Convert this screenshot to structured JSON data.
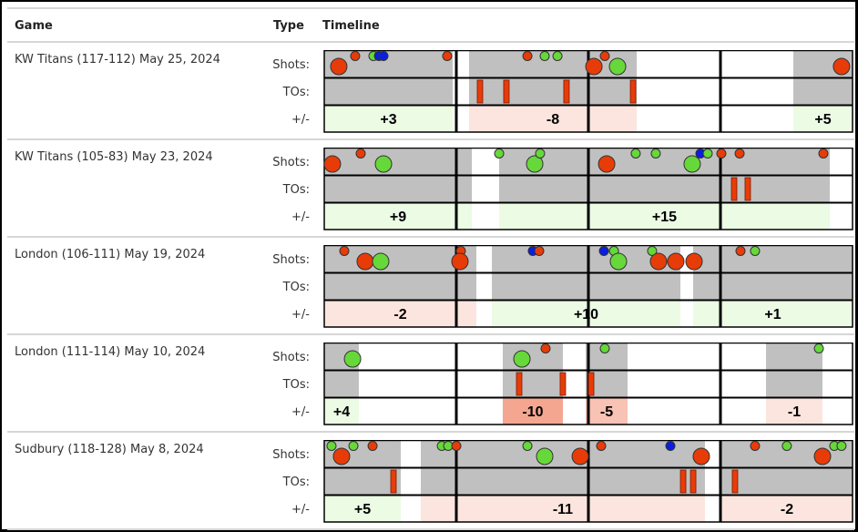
{
  "header": {
    "game": "Game",
    "type": "Type",
    "timeline": "Timeline"
  },
  "row_labels": {
    "shots": "Shots:",
    "tos": "TOs:",
    "plusminus": "+/-"
  },
  "colors": {
    "stint": "#c0c0c0",
    "red": "#e83c08",
    "green": "#66d83a",
    "blue": "#0a1ee0",
    "pos_light": "#ebfbe4",
    "neg_light": "#fce5de",
    "neg_strong": "#f4a690",
    "neg_mid": "#f8c2b4",
    "to_bar": "#e83c08"
  },
  "timeline_minutes": 48,
  "quarter_marks": [
    12,
    24,
    36
  ],
  "chart_data": [
    {
      "type": "timeline",
      "game": "KW Titans (117-112) May 25, 2024",
      "stints": [
        [
          0,
          11.67
        ],
        [
          13.16,
          28.39
        ],
        [
          42.62,
          48
        ]
      ],
      "shots": [
        {
          "t": 1.32,
          "result": "red",
          "size": 2
        },
        {
          "t": 2.81,
          "result": "red",
          "size": 1
        },
        {
          "t": 4.47,
          "result": "green",
          "size": 1
        },
        {
          "t": 4.97,
          "result": "blue",
          "size": 1
        },
        {
          "t": 5.38,
          "result": "blue",
          "size": 1
        },
        {
          "t": 11.17,
          "result": "red",
          "size": 1
        },
        {
          "t": 18.46,
          "result": "red",
          "size": 1
        },
        {
          "t": 20.03,
          "result": "green",
          "size": 1
        },
        {
          "t": 21.19,
          "result": "green",
          "size": 1
        },
        {
          "t": 24.5,
          "result": "red",
          "size": 2
        },
        {
          "t": 25.49,
          "result": "red",
          "size": 1
        },
        {
          "t": 26.65,
          "result": "green",
          "size": 2
        },
        {
          "t": 47.0,
          "result": "red",
          "size": 2
        }
      ],
      "turnovers": [
        14.15,
        16.55,
        22.01,
        28.06
      ],
      "plusminus": [
        {
          "start": 0,
          "end": 11.67,
          "value": "+3",
          "tone": "pos_light"
        },
        {
          "start": 13.16,
          "end": 28.39,
          "value": "-8",
          "tone": "neg_light"
        },
        {
          "start": 42.62,
          "end": 48,
          "value": "+5",
          "tone": "pos_light"
        }
      ]
    },
    {
      "type": "timeline",
      "game": "KW Titans (105-83) May 23, 2024",
      "stints": [
        [
          0,
          13.41
        ],
        [
          15.89,
          45.93
        ]
      ],
      "shots": [
        {
          "t": 0.74,
          "result": "red",
          "size": 2
        },
        {
          "t": 3.31,
          "result": "red",
          "size": 1
        },
        {
          "t": 5.38,
          "result": "green",
          "size": 2
        },
        {
          "t": 15.89,
          "result": "green",
          "size": 1
        },
        {
          "t": 19.12,
          "result": "green",
          "size": 2
        },
        {
          "t": 19.61,
          "result": "green",
          "size": 1
        },
        {
          "t": 25.66,
          "result": "red",
          "size": 2
        },
        {
          "t": 28.3,
          "result": "green",
          "size": 1
        },
        {
          "t": 30.12,
          "result": "green",
          "size": 1
        },
        {
          "t": 33.43,
          "result": "green",
          "size": 2
        },
        {
          "t": 34.18,
          "result": "blue",
          "size": 1
        },
        {
          "t": 34.84,
          "result": "green",
          "size": 1
        },
        {
          "t": 36.08,
          "result": "red",
          "size": 1
        },
        {
          "t": 37.74,
          "result": "red",
          "size": 1
        },
        {
          "t": 45.35,
          "result": "red",
          "size": 1
        }
      ],
      "turnovers": [
        37.24,
        38.48
      ],
      "plusminus": [
        {
          "start": 0,
          "end": 13.41,
          "value": "+9",
          "tone": "pos_light"
        },
        {
          "start": 15.89,
          "end": 45.93,
          "value": "+15",
          "tone": "pos_light"
        }
      ]
    },
    {
      "type": "timeline",
      "game": "London (106-111) May 19, 2024",
      "stints": [
        [
          0,
          13.82
        ],
        [
          15.23,
          32.36
        ],
        [
          33.52,
          48
        ]
      ],
      "shots": [
        {
          "t": 1.82,
          "result": "red",
          "size": 1
        },
        {
          "t": 3.72,
          "result": "red",
          "size": 2
        },
        {
          "t": 5.13,
          "result": "green",
          "size": 2
        },
        {
          "t": 12.41,
          "result": "red",
          "size": 1
        },
        {
          "t": 12.33,
          "result": "red",
          "size": 2
        },
        {
          "t": 18.95,
          "result": "blue",
          "size": 1
        },
        {
          "t": 19.53,
          "result": "red",
          "size": 1
        },
        {
          "t": 25.41,
          "result": "blue",
          "size": 1
        },
        {
          "t": 26.32,
          "result": "green",
          "size": 1
        },
        {
          "t": 26.73,
          "result": "green",
          "size": 2
        },
        {
          "t": 29.79,
          "result": "green",
          "size": 1
        },
        {
          "t": 30.37,
          "result": "red",
          "size": 2
        },
        {
          "t": 31.94,
          "result": "red",
          "size": 2
        },
        {
          "t": 33.6,
          "result": "red",
          "size": 2
        },
        {
          "t": 37.82,
          "result": "red",
          "size": 1
        },
        {
          "t": 39.14,
          "result": "green",
          "size": 1
        }
      ],
      "turnovers": [],
      "plusminus": [
        {
          "start": 0,
          "end": 13.82,
          "value": "-2",
          "tone": "neg_light"
        },
        {
          "start": 15.23,
          "end": 32.36,
          "value": "+10",
          "tone": "pos_light"
        },
        {
          "start": 33.52,
          "end": 48,
          "value": "+1",
          "tone": "pos_light"
        }
      ]
    },
    {
      "type": "timeline",
      "game": "London (111-114) May 10, 2024",
      "stints": [
        [
          0,
          3.14
        ],
        [
          16.22,
          21.68
        ],
        [
          23.75,
          27.56
        ],
        [
          40.14,
          45.27
        ]
      ],
      "shots": [
        {
          "t": 2.57,
          "result": "green",
          "size": 2
        },
        {
          "t": 17.96,
          "result": "green",
          "size": 2
        },
        {
          "t": 20.11,
          "result": "red",
          "size": 1
        },
        {
          "t": 25.49,
          "result": "green",
          "size": 1
        },
        {
          "t": 44.94,
          "result": "green",
          "size": 1
        }
      ],
      "turnovers": [
        17.71,
        21.68,
        24.25
      ],
      "plusminus": [
        {
          "start": 0,
          "end": 3.14,
          "value": "+4",
          "tone": "pos_light"
        },
        {
          "start": 16.22,
          "end": 21.68,
          "value": "-10",
          "tone": "neg_strong"
        },
        {
          "start": 23.75,
          "end": 27.56,
          "value": "-5",
          "tone": "neg_mid"
        },
        {
          "start": 40.14,
          "end": 45.27,
          "value": "-1",
          "tone": "neg_light"
        }
      ]
    },
    {
      "type": "timeline",
      "game": "Sudbury (118-128) May 8, 2024",
      "stints": [
        [
          0,
          6.95
        ],
        [
          8.77,
          34.59
        ],
        [
          36.08,
          48
        ]
      ],
      "shots": [
        {
          "t": 0.66,
          "result": "green",
          "size": 1
        },
        {
          "t": 1.57,
          "result": "red",
          "size": 2
        },
        {
          "t": 2.65,
          "result": "green",
          "size": 1
        },
        {
          "t": 4.39,
          "result": "red",
          "size": 1
        },
        {
          "t": 10.68,
          "result": "green",
          "size": 1
        },
        {
          "t": 11.26,
          "result": "green",
          "size": 1
        },
        {
          "t": 12.0,
          "result": "red",
          "size": 1
        },
        {
          "t": 18.46,
          "result": "green",
          "size": 1
        },
        {
          "t": 20.03,
          "result": "green",
          "size": 2
        },
        {
          "t": 23.26,
          "result": "red",
          "size": 2
        },
        {
          "t": 25.16,
          "result": "red",
          "size": 1
        },
        {
          "t": 31.45,
          "result": "blue",
          "size": 1
        },
        {
          "t": 34.26,
          "result": "red",
          "size": 2
        },
        {
          "t": 39.14,
          "result": "red",
          "size": 1
        },
        {
          "t": 42.03,
          "result": "green",
          "size": 1
        },
        {
          "t": 45.27,
          "result": "red",
          "size": 2
        },
        {
          "t": 46.34,
          "result": "green",
          "size": 1
        },
        {
          "t": 47.0,
          "result": "green",
          "size": 1
        }
      ],
      "turnovers": [
        6.29,
        32.61,
        33.52,
        37.32
      ],
      "plusminus": [
        {
          "start": 0,
          "end": 6.95,
          "value": "+5",
          "tone": "pos_light"
        },
        {
          "start": 8.77,
          "end": 34.59,
          "value": "-11",
          "tone": "neg_light"
        },
        {
          "start": 36.08,
          "end": 48,
          "value": "-2",
          "tone": "neg_light"
        }
      ]
    }
  ]
}
